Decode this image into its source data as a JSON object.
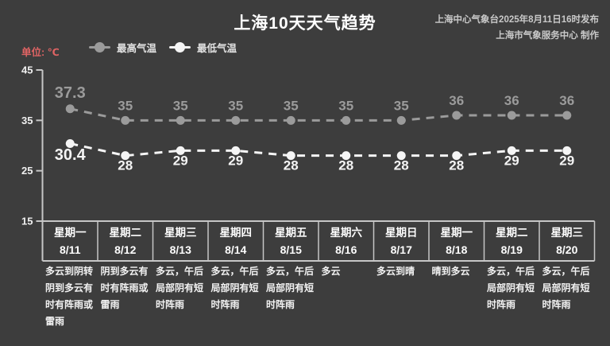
{
  "header": {
    "title": "上海10天天气趋势",
    "publisher_line1": "上海中心气象台2025年8月11日16时发布",
    "publisher_line2": "上海市气象服务中心 制作"
  },
  "colors": {
    "background": "#3d3d3d",
    "max_temp": "#9b9b9b",
    "min_temp": "#f5f5f5",
    "axis": "#c6c6c6",
    "unit_label": "#e06464",
    "text": "#ffffff"
  },
  "chart_data": {
    "type": "line",
    "title": "上海10天天气趋势",
    "unit_label": "单位: ℃",
    "ylabel": "℃",
    "yticks": [
      45,
      35,
      25,
      15
    ],
    "ylim": [
      15,
      45
    ],
    "grid": false,
    "legend_position": "top-left",
    "line_style": "dashed-with-markers",
    "categories": [
      "星期一",
      "星期二",
      "星期三",
      "星期四",
      "星期五",
      "星期六",
      "星期日",
      "星期一",
      "星期二",
      "星期三"
    ],
    "dates": [
      "8/11",
      "8/12",
      "8/13",
      "8/14",
      "8/15",
      "8/16",
      "8/17",
      "8/18",
      "8/19",
      "8/20"
    ],
    "series": [
      {
        "name": "最高气温",
        "color": "#9b9b9b",
        "label_position": "above",
        "values": [
          37.3,
          35,
          35,
          35,
          35,
          35,
          35,
          36,
          36,
          36
        ]
      },
      {
        "name": "最低气温",
        "color": "#f5f5f5",
        "label_position": "below",
        "values": [
          30.4,
          28,
          29,
          29,
          28,
          28,
          28,
          28,
          29,
          29
        ]
      }
    ],
    "conditions": [
      "多云到阴转阴到多云有时有阵雨或雷雨",
      "阴到多云有时有阵雨或雷雨",
      "多云，午后局部阴有短时阵雨",
      "多云，午后局部阴有短时阵雨",
      "多云，午后局部阴有短时阵雨",
      "多云",
      "多云到晴",
      "晴到多云",
      "多云，午后局部阴有短时阵雨",
      "多云，午后局部阴有短时阵雨"
    ]
  }
}
